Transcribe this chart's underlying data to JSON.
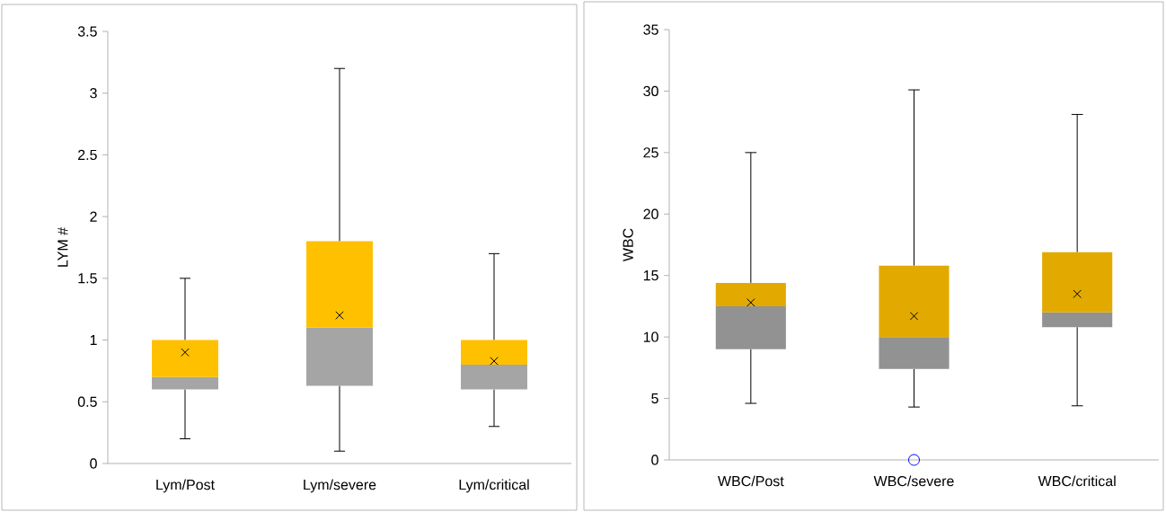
{
  "chart_data": [
    {
      "type": "box",
      "ylabel": "LYM #",
      "categories": [
        "Lym/Post",
        "Lym/severe",
        "Lym/critical"
      ],
      "boxes": [
        {
          "low": 0.2,
          "q1": 0.6,
          "median": 0.7,
          "q3": 1.0,
          "high": 1.5,
          "mean": 0.9
        },
        {
          "low": 0.1,
          "q1": 0.63,
          "median": 1.1,
          "q3": 1.8,
          "high": 3.2,
          "mean": 1.2
        },
        {
          "low": 0.3,
          "q1": 0.6,
          "median": 0.8,
          "q3": 1.0,
          "high": 1.7,
          "mean": 0.83
        }
      ],
      "colors": [
        [
          "#a5a5a5",
          "#ffc000"
        ],
        [
          "#a5a5a5",
          "#ffc000"
        ],
        [
          "#a5a5a5",
          "#ffc000"
        ]
      ],
      "marker": "cross",
      "ylim": [
        0,
        3.5
      ],
      "yticks": [
        0,
        0.5,
        1,
        1.5,
        2,
        2.5,
        3,
        3.5
      ]
    },
    {
      "type": "box",
      "ylabel": "WBC",
      "categories": [
        "WBC/Post",
        "WBC/severe",
        "WBC/critical"
      ],
      "boxes": [
        {
          "low": 4.6,
          "q1": 9.0,
          "median": 12.5,
          "q3": 14.4,
          "high": 25,
          "mean": 12.8
        },
        {
          "low": 4.3,
          "q1": 7.4,
          "median": 10.0,
          "q3": 15.8,
          "high": 30.1,
          "mean": 11.7,
          "outliers": [
            0
          ]
        },
        {
          "low": 4.4,
          "q1": 10.8,
          "median": 12.0,
          "q3": 16.9,
          "high": 28.1,
          "mean": 13.5
        }
      ],
      "colors": [
        [
          "#929292",
          "#e2aa00"
        ],
        [
          "#929292",
          "#e2aa00"
        ],
        [
          "#929292",
          "#e2aa00"
        ]
      ],
      "marker": "cross",
      "ylim": [
        0,
        35
      ],
      "yticks": [
        0,
        5,
        10,
        15,
        20,
        25,
        30,
        35
      ]
    }
  ]
}
